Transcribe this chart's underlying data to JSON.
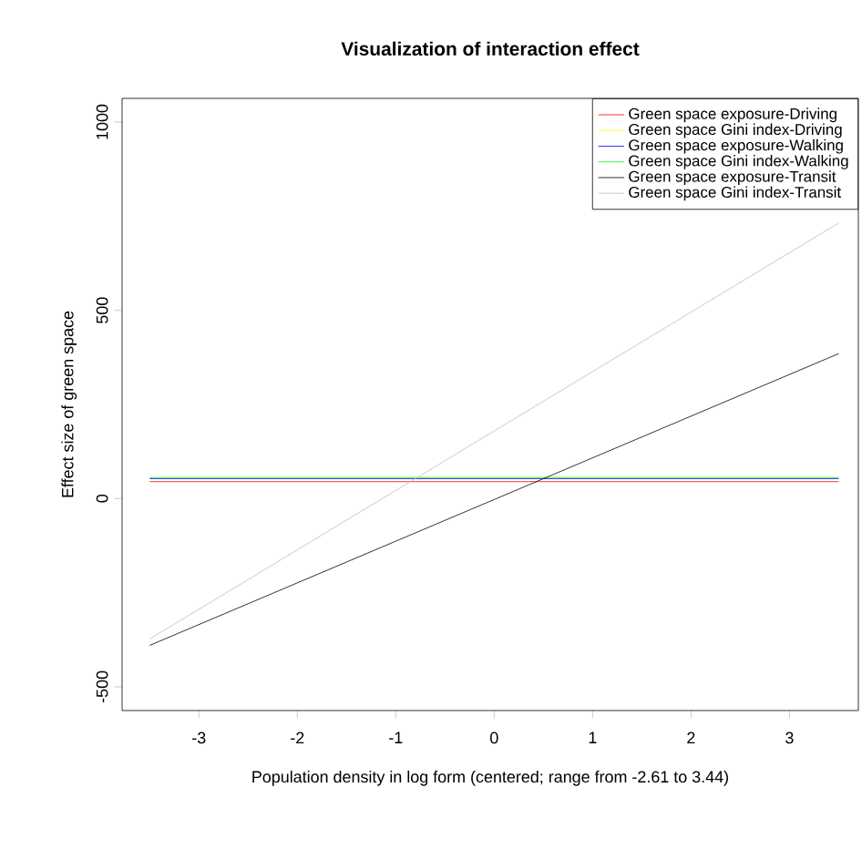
{
  "chart_data": {
    "type": "line",
    "title": "Visualization of interaction effect",
    "xlabel": "Population density in log form (centered; range from -2.61 to 3.44)",
    "ylabel": "Effect size of green space",
    "x": [
      -3.5,
      3.5
    ],
    "series": [
      {
        "name": "Green space exposure-Driving",
        "color": "#ff0000",
        "values": [
          45,
          45
        ]
      },
      {
        "name": "Green space Gini index-Driving",
        "color": "#ffff00",
        "values": [
          null,
          null
        ]
      },
      {
        "name": "Green space exposure-Walking",
        "color": "#0000ff",
        "values": [
          53,
          53
        ]
      },
      {
        "name": "Green space Gini index-Walking",
        "color": "#00ff00",
        "values": [
          56,
          56
        ]
      },
      {
        "name": "Green space exposure-Transit",
        "color": "#000000",
        "values": [
          -390,
          385
        ]
      },
      {
        "name": "Green space Gini index-Transit",
        "color": "#bebebe",
        "values": [
          -373,
          732
        ]
      }
    ],
    "xlim": [
      -3.78,
      3.7
    ],
    "ylim": [
      -563,
      1063
    ],
    "xticks": [
      -3,
      -2,
      -1,
      0,
      1,
      2,
      3
    ],
    "yticks": [
      -500,
      0,
      500,
      1000
    ],
    "legend": "top right",
    "grid": false,
    "marker": "none",
    "line_style": "solid"
  }
}
